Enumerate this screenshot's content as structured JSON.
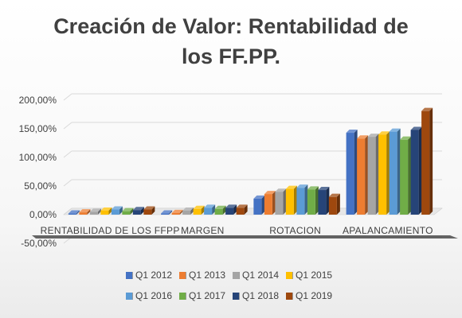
{
  "chart_data": {
    "type": "bar",
    "title": "Creación de Valor: Rentabilidad de los FF.PP.",
    "title_lines": [
      "Creación de Valor: Rentabilidad de",
      "los FF.PP."
    ],
    "categories": [
      "RENTABILIDAD DE LOS FFPP",
      "MARGEN",
      "ROTACION",
      "APALANCAMIENTO"
    ],
    "y_ticks": [
      "-50,00%",
      "0,00%",
      "50,00%",
      "100,00%",
      "150,00%",
      "200,00%"
    ],
    "ylim": [
      -50,
      200
    ],
    "legend_position": "bottom",
    "grid": true,
    "style": "3d-clustered-column",
    "series": [
      {
        "name": "Q1 2012",
        "color": "#4472c4",
        "values": [
          2,
          2,
          28,
          143
        ]
      },
      {
        "name": "Q1 2013",
        "color": "#ed7d31",
        "values": [
          4,
          3,
          36,
          133
        ]
      },
      {
        "name": "Q1 2014",
        "color": "#a5a5a5",
        "values": [
          5,
          7,
          40,
          136
        ]
      },
      {
        "name": "Q1 2015",
        "color": "#ffc000",
        "values": [
          7,
          10,
          45,
          140
        ]
      },
      {
        "name": "Q1 2016",
        "color": "#5b9bd5",
        "values": [
          9,
          12,
          47,
          145
        ]
      },
      {
        "name": "Q1 2017",
        "color": "#70ad47",
        "values": [
          6,
          10,
          44,
          131
        ]
      },
      {
        "name": "Q1 2018",
        "color": "#264478",
        "values": [
          8,
          12,
          43,
          148
        ]
      },
      {
        "name": "Q1 2019",
        "color": "#9e480e",
        "values": [
          9,
          12,
          31,
          181
        ]
      }
    ]
  }
}
